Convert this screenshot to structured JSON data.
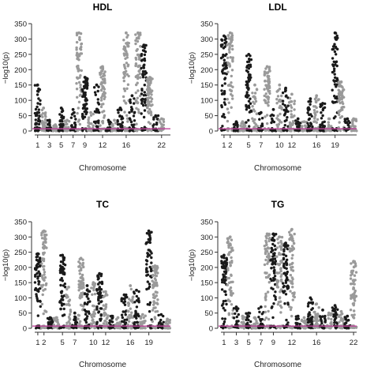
{
  "figure": {
    "panels": [
      {
        "title": "HDL",
        "xlabel": "Chromosome",
        "ylabel": "−log10(p)"
      },
      {
        "title": "LDL",
        "xlabel": "Chromosome",
        "ylabel": "−log10(p)"
      },
      {
        "title": "TC",
        "xlabel": "Chromosome",
        "ylabel": "−log10(p)"
      },
      {
        "title": "TG",
        "xlabel": "Chromosome",
        "ylabel": "−log10(p)"
      }
    ]
  },
  "colors": {
    "odd_chromosome": "#1a1a1a",
    "even_chromosome": "#9a9a9a",
    "threshold_line": "#c0439b",
    "axis": "#333333"
  },
  "chart_data": [
    {
      "type": "scatter",
      "title": "HDL",
      "xlabel": "Chromosome",
      "ylabel": "−log10(p)",
      "ylim": [
        0,
        350
      ],
      "yticks": [
        0,
        50,
        100,
        150,
        200,
        250,
        300,
        350
      ],
      "x_tick_labels": [
        "1",
        "3",
        "5",
        "7",
        "9",
        "12",
        "16",
        "22"
      ],
      "grid": false,
      "legend": "none",
      "series": [
        {
          "values": [
            {
              "x": 1,
              "y": 60
            },
            {
              "x": 1,
              "y": 150
            },
            {
              "x": 2,
              "y": 75
            },
            {
              "x": 3,
              "y": 35
            },
            {
              "x": 4,
              "y": 20
            },
            {
              "x": 5,
              "y": 75
            },
            {
              "x": 6,
              "y": 35
            },
            {
              "x": 7,
              "y": 70
            },
            {
              "x": 8,
              "y": 320
            },
            {
              "x": 9,
              "y": 175
            },
            {
              "x": 10,
              "y": 60
            },
            {
              "x": 11,
              "y": 150
            },
            {
              "x": 12,
              "y": 210
            },
            {
              "x": 13,
              "y": 35
            },
            {
              "x": 14,
              "y": 35
            },
            {
              "x": 15,
              "y": 75
            },
            {
              "x": 16,
              "y": 320
            },
            {
              "x": 17,
              "y": 115
            },
            {
              "x": 18,
              "y": 320
            },
            {
              "x": 19,
              "y": 280
            },
            {
              "x": 20,
              "y": 175
            },
            {
              "x": 21,
              "y": 50
            },
            {
              "x": 22,
              "y": 40
            }
          ]
        }
      ]
    },
    {
      "type": "scatter",
      "title": "LDL",
      "xlabel": "Chromosome",
      "ylabel": "−log10(p)",
      "ylim": [
        0,
        350
      ],
      "yticks": [
        0,
        50,
        100,
        150,
        200,
        250,
        300,
        350
      ],
      "x_tick_labels": [
        "1",
        "2",
        "5",
        "7",
        "10",
        "12",
        "16",
        "19"
      ],
      "grid": false,
      "legend": "none",
      "series": [
        {
          "values": [
            {
              "x": 1,
              "y": 310
            },
            {
              "x": 2,
              "y": 320
            },
            {
              "x": 3,
              "y": 30
            },
            {
              "x": 4,
              "y": 30
            },
            {
              "x": 5,
              "y": 250
            },
            {
              "x": 6,
              "y": 150
            },
            {
              "x": 7,
              "y": 60
            },
            {
              "x": 8,
              "y": 210
            },
            {
              "x": 9,
              "y": 70
            },
            {
              "x": 10,
              "y": 150
            },
            {
              "x": 11,
              "y": 140
            },
            {
              "x": 12,
              "y": 120
            },
            {
              "x": 13,
              "y": 40
            },
            {
              "x": 14,
              "y": 30
            },
            {
              "x": 15,
              "y": 105
            },
            {
              "x": 16,
              "y": 115
            },
            {
              "x": 17,
              "y": 90
            },
            {
              "x": 18,
              "y": 40
            },
            {
              "x": 19,
              "y": 320
            },
            {
              "x": 20,
              "y": 160
            },
            {
              "x": 21,
              "y": 40
            },
            {
              "x": 22,
              "y": 40
            }
          ]
        }
      ]
    },
    {
      "type": "scatter",
      "title": "TC",
      "xlabel": "Chromosome",
      "ylabel": "−log10(p)",
      "ylim": [
        0,
        350
      ],
      "yticks": [
        0,
        50,
        100,
        150,
        200,
        250,
        300,
        350
      ],
      "x_tick_labels": [
        "1",
        "2",
        "5",
        "7",
        "10",
        "12",
        "16",
        "19"
      ],
      "grid": false,
      "legend": "none",
      "series": [
        {
          "values": [
            {
              "x": 1,
              "y": 245
            },
            {
              "x": 2,
              "y": 320
            },
            {
              "x": 3,
              "y": 35
            },
            {
              "x": 4,
              "y": 35
            },
            {
              "x": 5,
              "y": 240
            },
            {
              "x": 6,
              "y": 135
            },
            {
              "x": 7,
              "y": 50
            },
            {
              "x": 8,
              "y": 230
            },
            {
              "x": 9,
              "y": 140
            },
            {
              "x": 10,
              "y": 150
            },
            {
              "x": 11,
              "y": 180
            },
            {
              "x": 12,
              "y": 120
            },
            {
              "x": 13,
              "y": 40
            },
            {
              "x": 14,
              "y": 35
            },
            {
              "x": 15,
              "y": 110
            },
            {
              "x": 16,
              "y": 140
            },
            {
              "x": 17,
              "y": 125
            },
            {
              "x": 18,
              "y": 45
            },
            {
              "x": 19,
              "y": 320
            },
            {
              "x": 20,
              "y": 205
            },
            {
              "x": 21,
              "y": 45
            },
            {
              "x": 22,
              "y": 30
            }
          ]
        }
      ]
    },
    {
      "type": "scatter",
      "title": "TG",
      "xlabel": "Chromosome",
      "ylabel": "−log10(p)",
      "ylim": [
        0,
        350
      ],
      "yticks": [
        0,
        50,
        100,
        150,
        200,
        250,
        300,
        350
      ],
      "x_tick_labels": [
        "1",
        "3",
        "5",
        "7",
        "9",
        "12",
        "16",
        "22"
      ],
      "grid": false,
      "legend": "none",
      "series": [
        {
          "values": [
            {
              "x": 1,
              "y": 240
            },
            {
              "x": 2,
              "y": 300
            },
            {
              "x": 3,
              "y": 70
            },
            {
              "x": 4,
              "y": 40
            },
            {
              "x": 5,
              "y": 50
            },
            {
              "x": 6,
              "y": 35
            },
            {
              "x": 7,
              "y": 70
            },
            {
              "x": 8,
              "y": 310
            },
            {
              "x": 9,
              "y": 310
            },
            {
              "x": 10,
              "y": 300
            },
            {
              "x": 11,
              "y": 280
            },
            {
              "x": 12,
              "y": 325
            },
            {
              "x": 13,
              "y": 40
            },
            {
              "x": 14,
              "y": 35
            },
            {
              "x": 15,
              "y": 100
            },
            {
              "x": 16,
              "y": 80
            },
            {
              "x": 17,
              "y": 60
            },
            {
              "x": 18,
              "y": 50
            },
            {
              "x": 19,
              "y": 75
            },
            {
              "x": 20,
              "y": 55
            },
            {
              "x": 21,
              "y": 40
            },
            {
              "x": 22,
              "y": 220
            }
          ]
        }
      ]
    }
  ]
}
